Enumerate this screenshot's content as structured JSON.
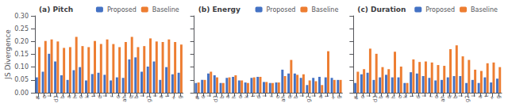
{
  "chart_data": [
    {
      "type": "bar",
      "title": "(a) Pitch",
      "ylabel": "JS Divergence",
      "categories": [
        "#",
        "o",
        "l",
        "d3",
        "b",
        "a",
        "h",
        "o",
        "k",
        "t",
        "d",
        "l",
        "r",
        "o",
        "ah",
        "q",
        "b",
        "l",
        "g2",
        "l",
        "a",
        "t",
        "+",
        "g"
      ],
      "series": [
        {
          "name": "Proposed",
          "color": "#4472c4",
          "values": [
            0.06,
            0.082,
            0.152,
            0.122,
            0.068,
            0.05,
            0.088,
            0.1,
            0.048,
            0.073,
            0.078,
            0.07,
            0.048,
            0.06,
            0.058,
            0.13,
            0.138,
            0.082,
            0.102,
            0.122,
            0.05,
            0.1,
            0.072,
            0.078
          ]
        },
        {
          "name": "Baseline",
          "color": "#ed7d31",
          "values": [
            0.178,
            0.202,
            0.208,
            0.2,
            0.175,
            0.178,
            0.218,
            0.182,
            0.178,
            0.202,
            0.19,
            0.208,
            0.19,
            0.178,
            0.198,
            0.218,
            0.178,
            0.182,
            0.212,
            0.2,
            0.198,
            0.208,
            0.198,
            0.188
          ]
        }
      ],
      "ylim": [
        0,
        0.3
      ],
      "yticks": [
        {
          "value": 0,
          "label": "0.00"
        },
        0.05,
        {
          "value": 0.1,
          "label": "0.10"
        },
        0.15,
        {
          "value": 0.2,
          "label": "0.20"
        },
        0.25,
        {
          "value": 0.3,
          "label": "0.30"
        }
      ],
      "grid": false,
      "legend": "upper right"
    },
    {
      "type": "bar",
      "title": "(b) Energy",
      "categories": [
        "#",
        "o",
        "l",
        "d3",
        "b",
        "a",
        "h",
        "o",
        "k",
        "t",
        "d",
        "l",
        "r",
        "o",
        "ah",
        "q",
        "b",
        "l",
        "g2",
        "l",
        "a",
        "t",
        "+",
        "g"
      ],
      "series": [
        {
          "name": "Proposed",
          "color": "#4472c4",
          "values": [
            0.038,
            0.05,
            0.075,
            0.068,
            0.038,
            0.058,
            0.062,
            0.048,
            0.04,
            0.058,
            0.062,
            0.042,
            0.038,
            0.04,
            0.09,
            0.075,
            0.075,
            0.058,
            0.03,
            0.058,
            0.062,
            0.06,
            0.058,
            0.05
          ]
        },
        {
          "name": "Baseline",
          "color": "#ed7d31",
          "values": [
            0.04,
            0.05,
            0.082,
            0.06,
            0.038,
            0.06,
            0.068,
            0.048,
            0.038,
            0.06,
            0.062,
            0.042,
            0.038,
            0.04,
            0.065,
            0.128,
            0.07,
            0.072,
            0.048,
            0.045,
            0.03,
            0.162,
            0.05,
            0.05
          ]
        }
      ],
      "ylim": [
        0,
        0.3
      ],
      "yticks": [
        {
          "value": 0,
          "label": "0.00"
        },
        0.05,
        {
          "value": 0.1,
          "label": "0.10"
        },
        0.15,
        {
          "value": 0.2,
          "label": "0.20"
        },
        0.25,
        {
          "value": 0.3,
          "label": "0.30"
        }
      ],
      "grid": false,
      "legend": "upper right",
      "tick_labels": "x"
    },
    {
      "type": "bar",
      "title": "(c) Duration",
      "categories": [
        "#",
        "o",
        "l",
        "d3",
        "b",
        "a",
        "h",
        "o",
        "k",
        "t",
        "d",
        "l",
        "r",
        "o",
        "ah",
        "q",
        "b",
        "l",
        "g2",
        "l",
        "a",
        "t",
        "+",
        "g"
      ],
      "series": [
        {
          "name": "Proposed",
          "color": "#4472c4",
          "values": [
            0.038,
            0.072,
            0.078,
            0.05,
            0.06,
            0.07,
            0.06,
            0.06,
            0.038,
            0.08,
            0.075,
            0.065,
            0.058,
            0.048,
            0.05,
            0.06,
            0.065,
            0.065,
            0.038,
            0.05,
            0.038,
            0.06,
            0.04,
            0.055
          ]
        },
        {
          "name": "Baseline",
          "color": "#ed7d31",
          "values": [
            0.082,
            0.092,
            0.172,
            0.152,
            0.1,
            0.092,
            0.16,
            0.102,
            0.038,
            0.13,
            0.12,
            0.122,
            0.118,
            0.108,
            0.105,
            0.17,
            0.185,
            0.142,
            0.128,
            0.09,
            0.085,
            0.115,
            0.118,
            0.1
          ]
        }
      ],
      "ylim": [
        0,
        0.3
      ],
      "yticks": [
        {
          "value": 0,
          "label": "0.00"
        },
        0.05,
        {
          "value": 0.1,
          "label": "0.10"
        },
        0.15,
        {
          "value": 0.2,
          "label": "0.20"
        },
        0.25,
        {
          "value": 0.3,
          "label": "0.30"
        }
      ],
      "grid": false,
      "legend": "upper right",
      "tick_labels": "x"
    }
  ]
}
